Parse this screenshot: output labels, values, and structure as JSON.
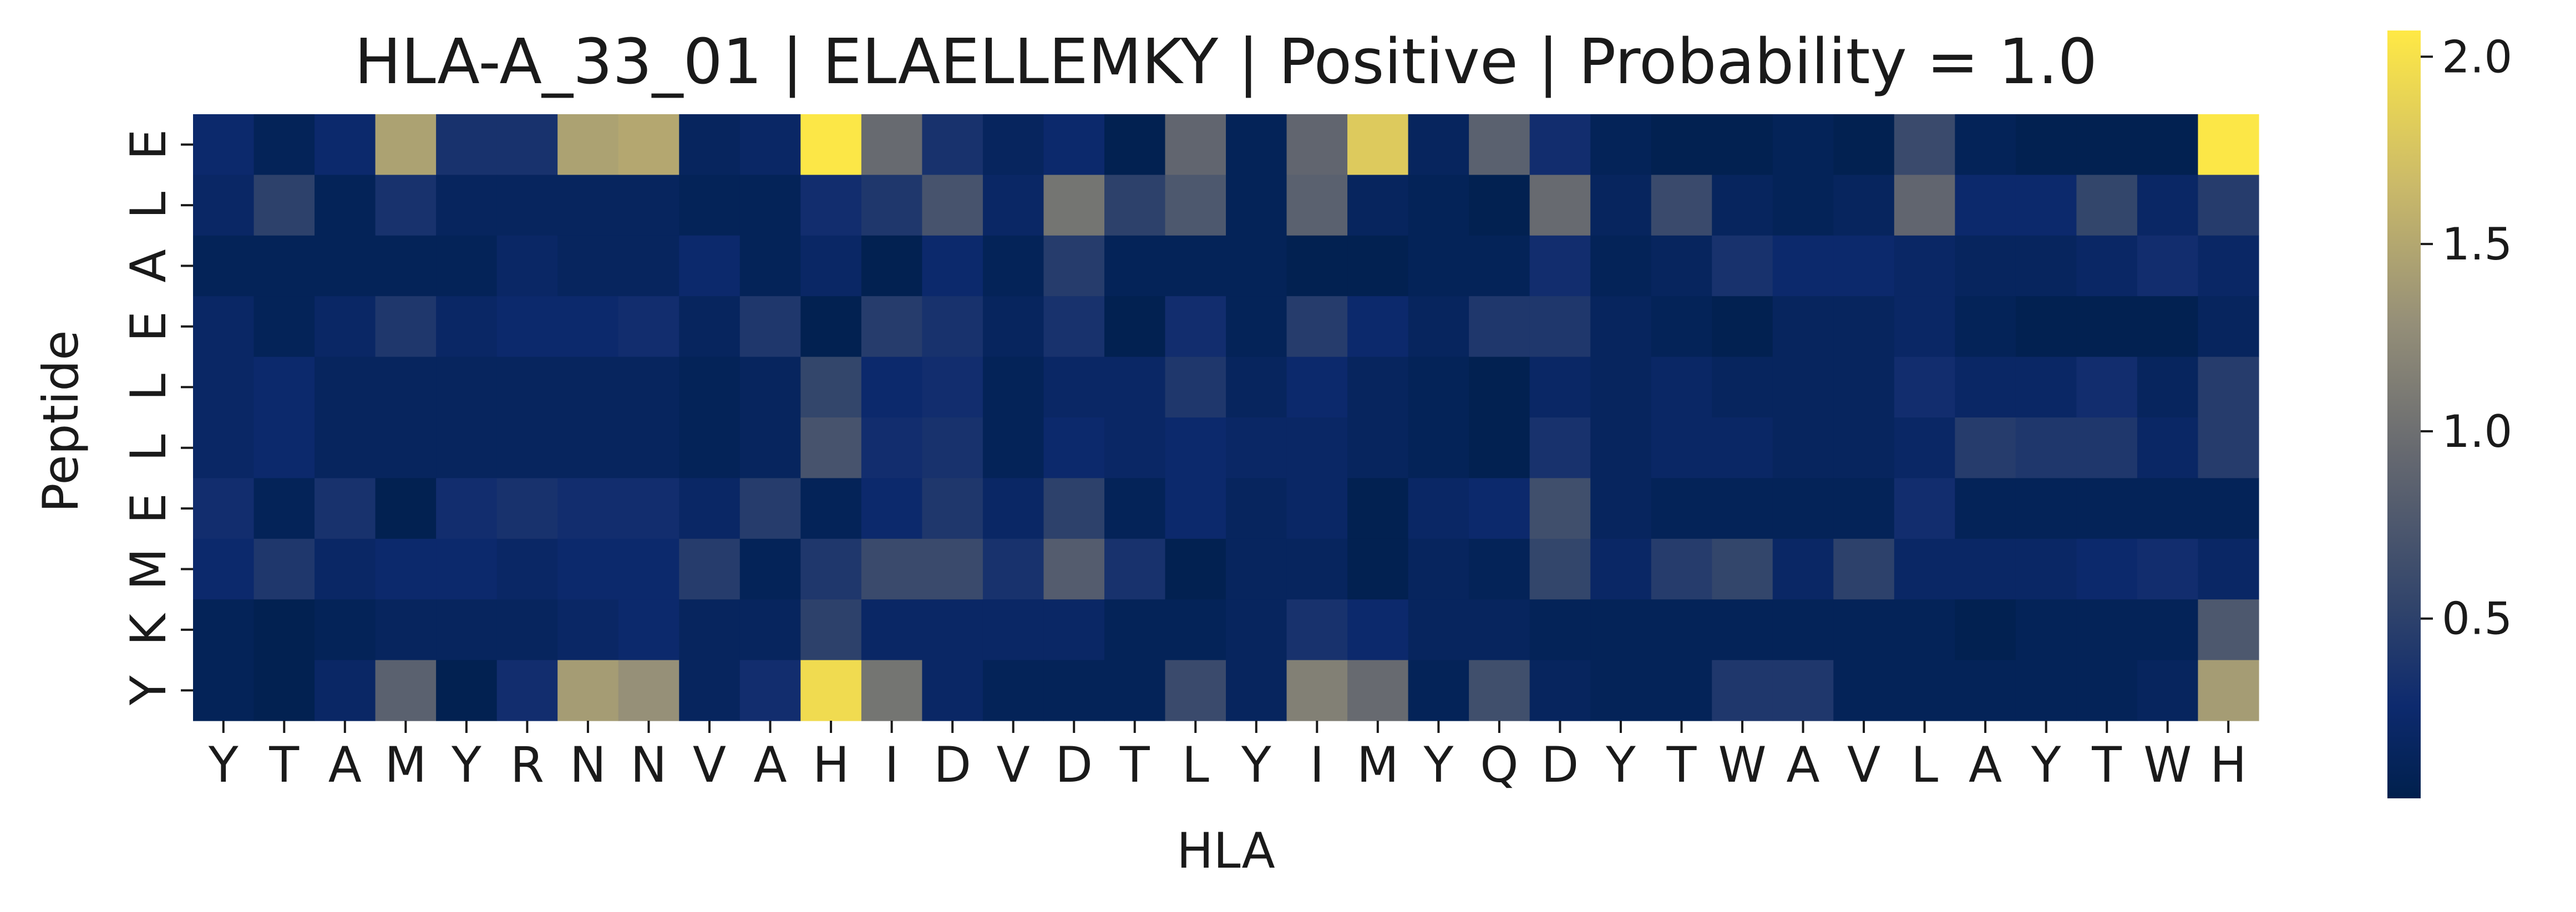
{
  "chart_data": {
    "type": "heatmap",
    "title": "HLA-A_33_01 | ELAELLEMKY | Positive | Probability = 1.0",
    "xlabel": "HLA",
    "ylabel": "Peptide",
    "x_categories": [
      "Y",
      "T",
      "A",
      "M",
      "Y",
      "R",
      "N",
      "N",
      "V",
      "A",
      "H",
      "I",
      "D",
      "V",
      "D",
      "T",
      "L",
      "Y",
      "I",
      "M",
      "Y",
      "Q",
      "D",
      "Y",
      "T",
      "W",
      "A",
      "V",
      "L",
      "A",
      "Y",
      "T",
      "W",
      "H"
    ],
    "y_categories": [
      "E",
      "L",
      "A",
      "E",
      "L",
      "L",
      "E",
      "M",
      "K",
      "Y"
    ],
    "values": [
      [
        0.25,
        0.1,
        0.25,
        1.45,
        0.35,
        0.35,
        1.45,
        1.5,
        0.15,
        0.2,
        2.05,
        0.95,
        0.35,
        0.15,
        0.25,
        0.05,
        0.9,
        0.1,
        0.9,
        1.8,
        0.15,
        0.85,
        0.3,
        0.1,
        0.05,
        0.05,
        0.1,
        0.05,
        0.6,
        0.1,
        0.05,
        0.05,
        0.05,
        2.05
      ],
      [
        0.2,
        0.5,
        0.1,
        0.35,
        0.15,
        0.15,
        0.15,
        0.15,
        0.1,
        0.1,
        0.3,
        0.4,
        0.7,
        0.2,
        1.05,
        0.5,
        0.75,
        0.1,
        0.85,
        0.15,
        0.1,
        0.05,
        0.95,
        0.15,
        0.6,
        0.15,
        0.1,
        0.15,
        0.9,
        0.25,
        0.25,
        0.55,
        0.2,
        0.45
      ],
      [
        0.1,
        0.1,
        0.1,
        0.1,
        0.1,
        0.2,
        0.15,
        0.15,
        0.25,
        0.1,
        0.2,
        0.05,
        0.25,
        0.1,
        0.45,
        0.1,
        0.1,
        0.1,
        0.05,
        0.05,
        0.1,
        0.1,
        0.3,
        0.1,
        0.15,
        0.35,
        0.25,
        0.25,
        0.2,
        0.15,
        0.15,
        0.2,
        0.3,
        0.2
      ],
      [
        0.2,
        0.1,
        0.2,
        0.4,
        0.2,
        0.25,
        0.25,
        0.3,
        0.15,
        0.4,
        0.05,
        0.45,
        0.35,
        0.15,
        0.35,
        0.05,
        0.3,
        0.1,
        0.45,
        0.25,
        0.15,
        0.4,
        0.4,
        0.15,
        0.1,
        0.05,
        0.15,
        0.15,
        0.2,
        0.1,
        0.05,
        0.05,
        0.05,
        0.15
      ],
      [
        0.2,
        0.25,
        0.15,
        0.15,
        0.15,
        0.15,
        0.15,
        0.15,
        0.1,
        0.15,
        0.55,
        0.25,
        0.3,
        0.1,
        0.2,
        0.2,
        0.4,
        0.15,
        0.25,
        0.15,
        0.1,
        0.05,
        0.2,
        0.15,
        0.2,
        0.15,
        0.15,
        0.15,
        0.3,
        0.2,
        0.2,
        0.3,
        0.15,
        0.45
      ],
      [
        0.2,
        0.25,
        0.15,
        0.15,
        0.15,
        0.15,
        0.15,
        0.15,
        0.1,
        0.15,
        0.7,
        0.3,
        0.35,
        0.1,
        0.25,
        0.2,
        0.25,
        0.2,
        0.2,
        0.15,
        0.1,
        0.05,
        0.35,
        0.15,
        0.2,
        0.2,
        0.15,
        0.15,
        0.2,
        0.45,
        0.4,
        0.4,
        0.2,
        0.45
      ],
      [
        0.3,
        0.1,
        0.35,
        0.05,
        0.3,
        0.35,
        0.3,
        0.3,
        0.2,
        0.45,
        0.1,
        0.25,
        0.4,
        0.2,
        0.5,
        0.1,
        0.25,
        0.15,
        0.2,
        0.05,
        0.2,
        0.25,
        0.65,
        0.15,
        0.1,
        0.1,
        0.1,
        0.1,
        0.3,
        0.1,
        0.1,
        0.1,
        0.1,
        0.1
      ],
      [
        0.25,
        0.4,
        0.2,
        0.25,
        0.25,
        0.2,
        0.25,
        0.25,
        0.45,
        0.1,
        0.4,
        0.6,
        0.6,
        0.35,
        0.8,
        0.35,
        0.05,
        0.15,
        0.15,
        0.05,
        0.15,
        0.1,
        0.55,
        0.2,
        0.45,
        0.55,
        0.2,
        0.5,
        0.2,
        0.2,
        0.2,
        0.25,
        0.3,
        0.2
      ],
      [
        0.1,
        0.05,
        0.1,
        0.15,
        0.15,
        0.15,
        0.2,
        0.25,
        0.15,
        0.15,
        0.5,
        0.2,
        0.2,
        0.2,
        0.2,
        0.1,
        0.1,
        0.15,
        0.35,
        0.25,
        0.15,
        0.15,
        0.1,
        0.1,
        0.1,
        0.1,
        0.1,
        0.1,
        0.1,
        0.05,
        0.1,
        0.1,
        0.1,
        0.75
      ],
      [
        0.1,
        0.05,
        0.2,
        0.85,
        0.05,
        0.3,
        1.4,
        1.3,
        0.15,
        0.3,
        1.95,
        1.05,
        0.2,
        0.1,
        0.1,
        0.1,
        0.6,
        0.15,
        1.15,
        0.95,
        0.1,
        0.65,
        0.15,
        0.1,
        0.1,
        0.4,
        0.4,
        0.1,
        0.1,
        0.1,
        0.1,
        0.1,
        0.15,
        1.4
      ]
    ],
    "colorbar": {
      "colormap": "cividis",
      "min": 0.02,
      "max": 2.07,
      "ticks": [
        0.5,
        1.0,
        1.5,
        2.0
      ],
      "tick_labels": [
        "0.5",
        "1.0",
        "1.5",
        "2.0"
      ]
    },
    "grid": false
  }
}
